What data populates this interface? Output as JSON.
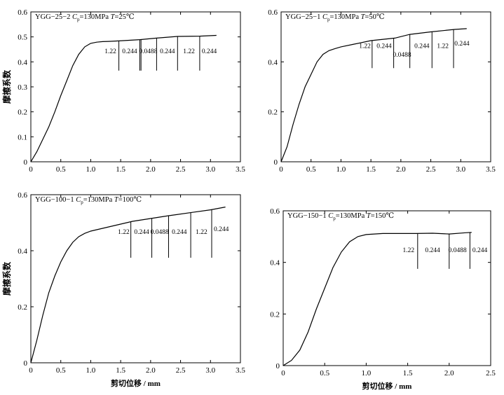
{
  "chart_data": [
    {
      "type": "line",
      "title": {
        "prefix": "YGG−25−2 ",
        "c": "C",
        "sub": "p",
        "mid": "=130MPa ",
        "t": "T",
        "suffix": "=25℃"
      },
      "ylabel": "摩擦系数",
      "xlabel": "",
      "xlim": [
        0,
        3.5
      ],
      "ylim": [
        0,
        0.6
      ],
      "xticks": [
        "0",
        "0.5",
        "1.0",
        "1.5",
        "2.0",
        "2.5",
        "3.0",
        "3.5"
      ],
      "yticks": [
        "0",
        "0.1",
        "0.2",
        "0.3",
        "0.4",
        "0.5",
        "0.6"
      ],
      "series": [
        {
          "x": [
            0,
            0.1,
            0.2,
            0.3,
            0.4,
            0.5,
            0.6,
            0.7,
            0.8,
            0.9,
            1.0,
            1.1,
            1.2,
            1.3,
            1.47,
            1.82,
            2.1,
            2.45,
            2.82,
            3.1
          ],
          "y": [
            0,
            0.04,
            0.09,
            0.14,
            0.2,
            0.265,
            0.325,
            0.385,
            0.43,
            0.46,
            0.474,
            0.479,
            0.481,
            0.482,
            0.484,
            0.489,
            0.495,
            0.502,
            0.503,
            0.506
          ]
        }
      ],
      "segment_labels": [
        {
          "text": "1.22",
          "x": 1.33
        },
        {
          "text": "0.244",
          "x": 1.65
        },
        {
          "text": "0.0488",
          "x": 1.96
        },
        {
          "text": "0.244",
          "x": 2.28
        },
        {
          "text": "1.22",
          "x": 2.64
        },
        {
          "text": "0.244",
          "x": 2.98
        }
      ],
      "label_y": 0.435,
      "markers": [
        1.47,
        1.82,
        1.84,
        2.1,
        2.45,
        2.82
      ],
      "marker_bottom": 0.365
    },
    {
      "type": "line",
      "title": {
        "prefix": "YGG−25−1 ",
        "c": "C",
        "sub": "p",
        "mid": "=130MPa ",
        "t": "T",
        "suffix": "=50℃"
      },
      "ylabel": "",
      "xlabel": "",
      "xlim": [
        0,
        3.5
      ],
      "ylim": [
        0,
        0.6
      ],
      "xticks": [
        "0",
        "0.5",
        "1.0",
        "1.5",
        "2.0",
        "2.5",
        "3.0",
        "3.5"
      ],
      "yticks": [
        "0",
        "0.2",
        "0.4",
        "0.6"
      ],
      "series": [
        {
          "x": [
            0,
            0.1,
            0.2,
            0.3,
            0.4,
            0.5,
            0.6,
            0.7,
            0.8,
            0.9,
            1.0,
            1.2,
            1.5,
            1.9,
            2.15,
            2.5,
            2.9,
            3.1
          ],
          "y": [
            0,
            0.06,
            0.15,
            0.23,
            0.3,
            0.35,
            0.4,
            0.43,
            0.445,
            0.453,
            0.46,
            0.47,
            0.485,
            0.495,
            0.51,
            0.52,
            0.53,
            0.533
          ]
        }
      ],
      "segment_labels": [
        {
          "text": "1.22",
          "x": 1.4
        },
        {
          "text": "0.244",
          "x": 1.72
        },
        {
          "text": "0.0488",
          "x": 2.02
        },
        {
          "text": "0.244",
          "x": 2.35
        },
        {
          "text": "1.22",
          "x": 2.7
        },
        {
          "text": "0.244",
          "x": 3.02
        }
      ],
      "label_y_list": [
        0.455,
        0.455,
        0.42,
        0.455,
        0.455,
        0.465
      ],
      "markers": [
        1.52,
        1.88,
        2.15,
        2.52,
        2.88
      ],
      "marker_bottom": 0.375
    },
    {
      "type": "line",
      "title": {
        "prefix": "YGG−100−1 ",
        "c": "C",
        "sub": "p",
        "mid": "=130MPa ",
        "t": "T",
        "suffix": "=100℃"
      },
      "ylabel": "摩擦系数",
      "xlabel": "剪切位移 / mm",
      "xlim": [
        0,
        3.5
      ],
      "ylim": [
        0,
        0.6
      ],
      "xticks": [
        "0",
        "0.5",
        "1.0",
        "1.5",
        "2.0",
        "2.5",
        "3.0",
        "3.5"
      ],
      "yticks": [
        "0",
        "0.2",
        "0.4",
        "0.6"
      ],
      "series": [
        {
          "x": [
            0,
            0.1,
            0.2,
            0.3,
            0.4,
            0.5,
            0.6,
            0.7,
            0.8,
            0.9,
            1.0,
            1.2,
            1.5,
            1.7,
            2.0,
            2.3,
            2.7,
            3.0,
            3.25
          ],
          "y": [
            0,
            0.08,
            0.17,
            0.25,
            0.31,
            0.36,
            0.4,
            0.43,
            0.45,
            0.462,
            0.47,
            0.48,
            0.495,
            0.505,
            0.515,
            0.525,
            0.537,
            0.546,
            0.556
          ]
        }
      ],
      "segment_labels": [
        {
          "text": "1.22",
          "x": 1.55
        },
        {
          "text": "0.244",
          "x": 1.85
        },
        {
          "text": "0.0488",
          "x": 2.15
        },
        {
          "text": "0.244",
          "x": 2.48
        },
        {
          "text": "1.22",
          "x": 2.85
        },
        {
          "text": "0.244",
          "x": 3.18
        }
      ],
      "label_y_list": [
        0.46,
        0.46,
        0.46,
        0.46,
        0.46,
        0.47
      ],
      "markers": [
        1.67,
        2.02,
        2.3,
        2.67,
        3.02
      ],
      "marker_bottom": 0.375
    },
    {
      "type": "line",
      "title": {
        "prefix": "YGG−150−1 ",
        "c": "C",
        "sub": "p",
        "mid": "=130MPa ",
        "t": "T",
        "suffix": "=150℃"
      },
      "ylabel": "",
      "xlabel": "剪切位移 / mm",
      "xlim": [
        0,
        2.5
      ],
      "ylim": [
        0,
        0.6
      ],
      "xticks": [
        "0",
        "0.5",
        "1.0",
        "1.5",
        "2.0",
        "2.5"
      ],
      "yticks": [
        "0",
        "0.2",
        "0.4",
        "0.6"
      ],
      "series": [
        {
          "x": [
            0,
            0.1,
            0.2,
            0.3,
            0.4,
            0.5,
            0.6,
            0.7,
            0.8,
            0.9,
            1.0,
            1.1,
            1.2,
            1.4,
            1.6,
            1.8,
            2.0,
            2.2,
            2.27
          ],
          "y": [
            0,
            0.02,
            0.06,
            0.13,
            0.22,
            0.3,
            0.38,
            0.44,
            0.48,
            0.5,
            0.508,
            0.51,
            0.512,
            0.512,
            0.512,
            0.513,
            0.51,
            0.515,
            0.516
          ]
        }
      ],
      "segment_labels": [
        {
          "text": "1.22",
          "x": 1.51
        },
        {
          "text": "0.244",
          "x": 1.8
        },
        {
          "text": "0.0488",
          "x": 2.1
        },
        {
          "text": "0.244",
          "x": 2.37
        }
      ],
      "label_y": 0.44,
      "markers": [
        1.62,
        2.0,
        2.25
      ],
      "marker_bottom": 0.375
    }
  ]
}
